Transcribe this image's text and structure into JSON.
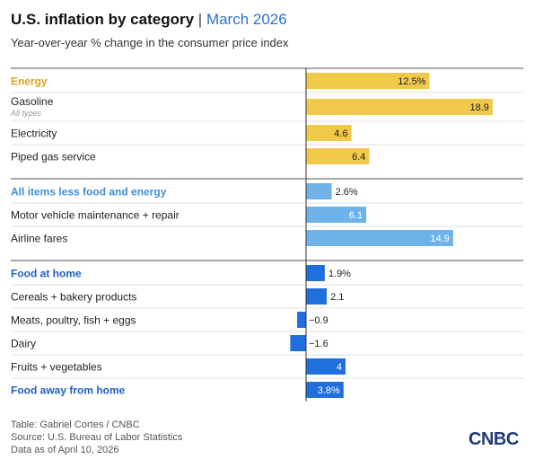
{
  "header": {
    "title": "U.S. inflation by category",
    "separator": "|",
    "date": "March 2026",
    "subtitle": "Year-over-year % change in the consumer price index"
  },
  "chart_data": {
    "type": "bar",
    "orientation": "horizontal",
    "grid": false,
    "groups": [
      {
        "color": "#f0c84a",
        "header_text_color": "#d9a521",
        "rows": [
          {
            "label": "Energy",
            "sublabel": "",
            "value": 12.5,
            "value_label": "12.5%",
            "header": true
          },
          {
            "label": "Gasoline",
            "sublabel": "All types",
            "value": 18.9,
            "value_label": "18.9",
            "header": false
          },
          {
            "label": "Electricity",
            "sublabel": "",
            "value": 4.6,
            "value_label": "4.6",
            "header": false
          },
          {
            "label": "Piped gas service",
            "sublabel": "",
            "value": 6.4,
            "value_label": "6.4",
            "header": false
          }
        ]
      },
      {
        "color": "#6db3ea",
        "header_text_color": "#3d8fd6",
        "rows": [
          {
            "label": "All items less food and energy",
            "sublabel": "",
            "value": 2.6,
            "value_label": "2.6%",
            "header": true
          },
          {
            "label": "Motor vehicle maintenance + repair",
            "sublabel": "",
            "value": 6.1,
            "value_label": "6.1",
            "header": false
          },
          {
            "label": "Airline fares",
            "sublabel": "",
            "value": 14.9,
            "value_label": "14.9",
            "header": false
          }
        ]
      },
      {
        "color": "#1f6fdc",
        "header_text_color": "#1f5fc4",
        "rows": [
          {
            "label": "Food at home",
            "sublabel": "",
            "value": 1.9,
            "value_label": "1.9%",
            "header": true
          },
          {
            "label": "Cereals + bakery products",
            "sublabel": "",
            "value": 2.1,
            "value_label": "2.1",
            "header": false
          },
          {
            "label": "Meats, poultry, fish + eggs",
            "sublabel": "",
            "value": -0.9,
            "value_label": "−0.9",
            "header": false
          },
          {
            "label": "Dairy",
            "sublabel": "",
            "value": -1.6,
            "value_label": "−1.6",
            "header": false
          },
          {
            "label": "Fruits + vegetables",
            "sublabel": "",
            "value": 4,
            "value_label": "4",
            "header": false
          },
          {
            "label": "Food away from home",
            "sublabel": "",
            "value": 3.8,
            "value_label": "3.8%",
            "header": true,
            "group_label": true
          }
        ]
      }
    ]
  },
  "footer": {
    "line1": "Table: Gabriel Cortes / CNBC",
    "line2": "Source: U.S. Bureau of Labor Statistics",
    "line3": "Data as of April 10, 2026"
  },
  "logo": {
    "text": "CNBC"
  }
}
